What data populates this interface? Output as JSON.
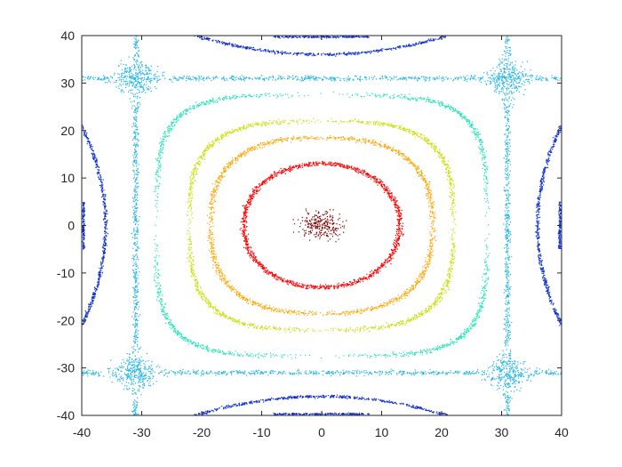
{
  "chart_data": {
    "type": "scatter",
    "title": "",
    "xlabel": "",
    "ylabel": "",
    "xlim": [
      -40,
      40
    ],
    "ylim": [
      -40,
      40
    ],
    "grid": false,
    "x_ticks": [
      "-40",
      "-30",
      "-20",
      "-10",
      "0",
      "10",
      "20",
      "30",
      "40"
    ],
    "y_ticks": [
      "40",
      "30",
      "20",
      "10",
      "0",
      "-10",
      "-20",
      "-30",
      "-40"
    ],
    "x_tick_values": [
      -40,
      -30,
      -20,
      -10,
      0,
      10,
      20,
      30,
      40
    ],
    "y_tick_values": [
      40,
      30,
      20,
      10,
      0,
      -10,
      -20,
      -30,
      -40
    ],
    "series": [
      {
        "color": "#7f0000",
        "shape": "cluster",
        "cx": 0,
        "cy": 0,
        "spread": 3
      },
      {
        "color": "#ff0000",
        "shape": "superellipse",
        "cx": 0,
        "cy": 0,
        "a": 13,
        "b": 13,
        "n": 2.1
      },
      {
        "color": "#ffa500",
        "shape": "superellipse",
        "cx": 0,
        "cy": 0,
        "a": 18.5,
        "b": 18.5,
        "n": 2.6
      },
      {
        "color": "#c8e000",
        "shape": "superellipse",
        "cx": 0,
        "cy": 0,
        "a": 22,
        "b": 22,
        "n": 3.2
      },
      {
        "color": "#20e6b8",
        "shape": "superellipse",
        "cx": 0,
        "cy": 0,
        "a": 27.5,
        "b": 27.5,
        "n": 4.2
      },
      {
        "color": "#20b4e8",
        "shape": "separatrix",
        "lines": [
          -31,
          31
        ]
      },
      {
        "color": "#1030d0",
        "shape": "outer_arcs"
      }
    ]
  }
}
